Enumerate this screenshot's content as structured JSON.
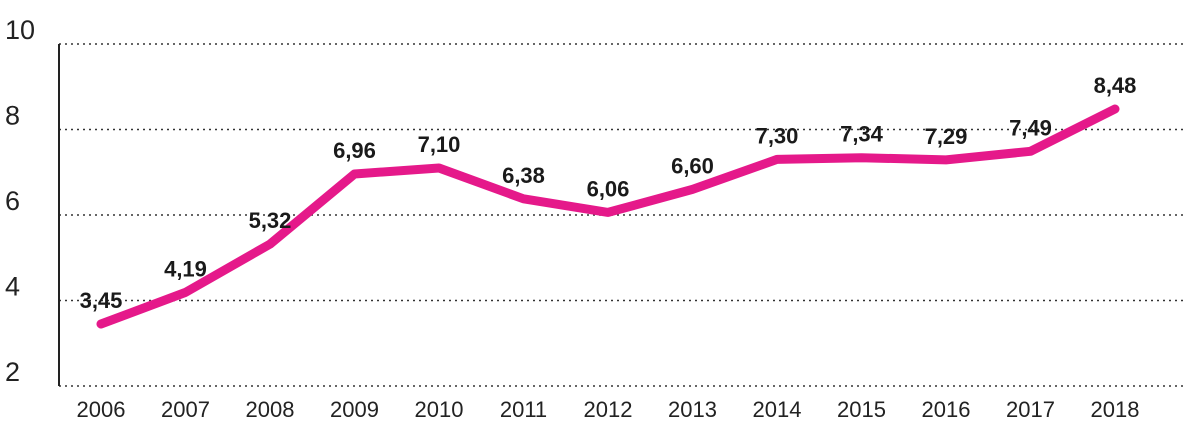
{
  "chart_data": {
    "type": "line",
    "categories": [
      "2006",
      "2007",
      "2008",
      "2009",
      "2010",
      "2011",
      "2012",
      "2013",
      "2014",
      "2015",
      "2016",
      "2017",
      "2018"
    ],
    "series": [
      {
        "values": [
          3.45,
          4.19,
          5.32,
          6.96,
          7.1,
          6.38,
          6.06,
          6.6,
          7.3,
          7.34,
          7.29,
          7.49,
          8.48
        ],
        "labels": [
          "3,45",
          "4,19",
          "5,32",
          "6,96",
          "7,10",
          "6,38",
          "6,06",
          "6,60",
          "7,30",
          "7,34",
          "7,29",
          "7,49",
          "8,48"
        ],
        "color": "#e5198a"
      }
    ],
    "yticks": [
      {
        "value": 2,
        "label": "2"
      },
      {
        "value": 4,
        "label": "4"
      },
      {
        "value": 6,
        "label": "6"
      },
      {
        "value": 8,
        "label": "8"
      },
      {
        "value": 10,
        "label": "10"
      }
    ],
    "ylim": [
      2,
      10
    ],
    "grid": true,
    "grid_style": "dotted",
    "title": "",
    "xlabel": "",
    "ylabel": ""
  }
}
